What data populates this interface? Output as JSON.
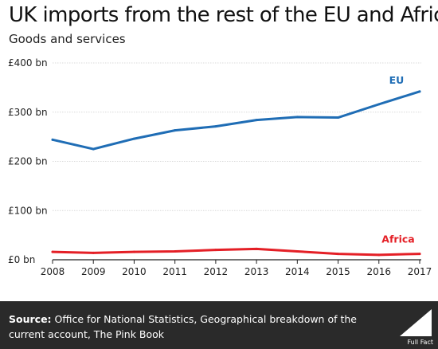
{
  "header": {
    "title": "UK imports from the rest of the EU and Africa",
    "subtitle": "Goods and services"
  },
  "chart_data": {
    "type": "line",
    "title": "UK imports from the rest of the EU and Africa",
    "subtitle": "Goods and services",
    "x": [
      2008,
      2009,
      2010,
      2011,
      2012,
      2013,
      2014,
      2015,
      2016,
      2017
    ],
    "y_ticks": [
      "£0 bn",
      "£100 bn",
      "£200 bn",
      "£300 bn",
      "£400 bn"
    ],
    "y_tick_values": [
      0,
      100,
      200,
      300,
      400
    ],
    "ylim": [
      0,
      400
    ],
    "grid": true,
    "series": [
      {
        "name": "EU",
        "color": "#1f6db5",
        "values": [
          244,
          225,
          246,
          263,
          271,
          284,
          290,
          289,
          316,
          342
        ]
      },
      {
        "name": "Africa",
        "color": "#e41f26",
        "values": [
          16,
          14,
          16,
          17,
          20,
          22,
          17,
          12,
          10,
          12
        ]
      }
    ]
  },
  "footer": {
    "source_label": "Source:",
    "source_text": "Office for National Statistics, Geographical breakdown of the current account, The Pink Book",
    "logo_text": "Full Fact"
  }
}
